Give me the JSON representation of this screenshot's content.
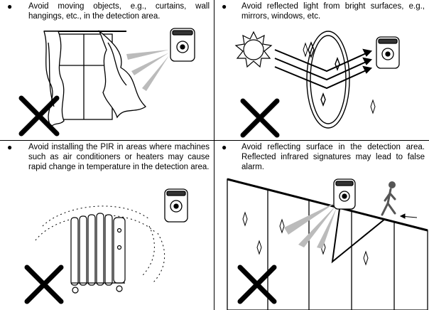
{
  "panels": [
    {
      "bullet": "●",
      "text": "Avoid moving objects, e.g., curtains, wall hangings, etc., in the detection area."
    },
    {
      "bullet": "●",
      "text": "Avoid reflected light from bright surfaces, e.g., mirrors, windows, etc."
    },
    {
      "bullet": "●",
      "text": "Avoid installing the PIR in areas where machines such as air conditioners or heaters may cause rapid change in temperature in the detection area."
    },
    {
      "bullet": "●",
      "text": "Avoid reflecting surface in the detection area. Reflected infrared signatures may lead to false alarm."
    }
  ],
  "icons": [
    "pir-sensor-icon",
    "window-curtain-icon",
    "sun-icon",
    "mirror-icon",
    "heater-icon",
    "walking-person-icon",
    "prohibited-x-icon"
  ]
}
